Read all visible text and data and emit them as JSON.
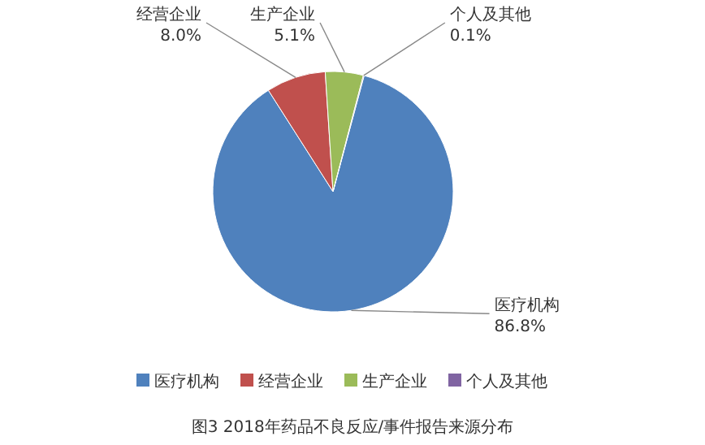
{
  "chart_data": {
    "type": "pie",
    "title": "图3 2018年药品不良反应/事件报告来源分布",
    "categories": [
      "医疗机构",
      "经营企业",
      "生产企业",
      "个人及其他"
    ],
    "values": [
      86.8,
      8.0,
      5.1,
      0.1
    ],
    "value_labels": [
      "86.8%",
      "8.0%",
      "5.1%",
      "0.1%"
    ],
    "colors": [
      "#4f81bd",
      "#c0504d",
      "#9bbb59",
      "#8064a2"
    ],
    "legend": "bottom"
  }
}
